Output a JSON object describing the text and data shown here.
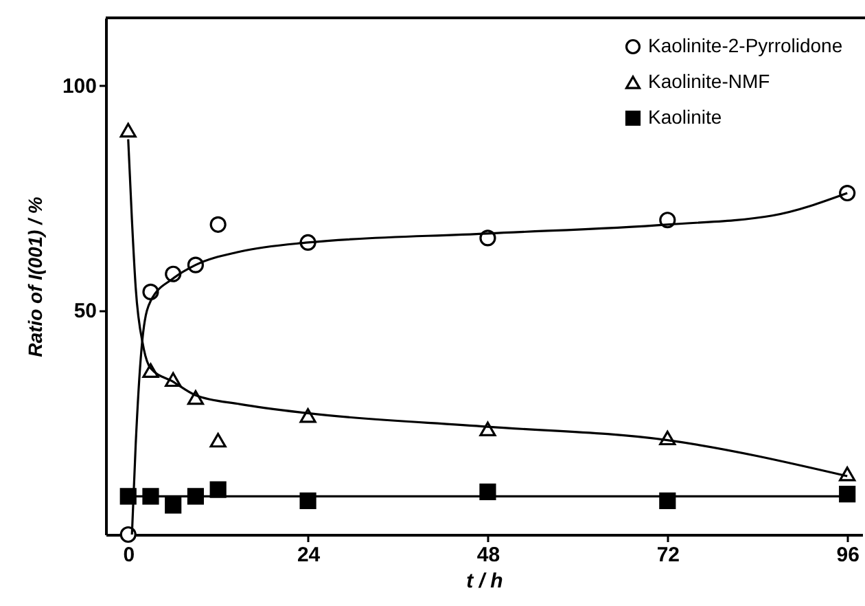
{
  "chart_data": {
    "type": "scatter",
    "xlabel": "t / h",
    "ylabel": "Ratio of I(001) / %",
    "xlim": [
      -3,
      98
    ],
    "xticks": [
      0,
      24,
      48,
      72,
      96
    ],
    "ylim": [
      0,
      115
    ],
    "yticks": [
      50,
      100
    ],
    "grid": false,
    "legend": "top right",
    "series": [
      {
        "name": "Kaolinite-2-Pyrrolidone",
        "color": "#000000",
        "marker": "circle",
        "x": [
          0,
          3,
          6,
          9,
          12,
          24,
          48,
          72,
          96
        ],
        "values": [
          0,
          54,
          58,
          60,
          69,
          65,
          66,
          70,
          76
        ]
      },
      {
        "name": "Kaolinite-NMF",
        "color": "#000000",
        "marker": "triangle",
        "x": [
          0,
          3,
          6,
          9,
          12,
          24,
          48,
          72,
          96
        ],
        "values": [
          90,
          36.5,
          34.5,
          30.5,
          21,
          26.5,
          23.5,
          21.5,
          13.5
        ]
      },
      {
        "name": "Kaolinite",
        "color": "#000000",
        "marker": "square",
        "x": [
          0,
          3,
          6,
          9,
          12,
          24,
          48,
          72,
          96
        ],
        "values": [
          8.5,
          8.5,
          6.5,
          8.5,
          10,
          7.5,
          9.5,
          7.5,
          9
        ]
      },
      {
        "type": "line",
        "color": "#000000",
        "marker": "none",
        "line_style": "solid",
        "x": [
          0.5,
          1,
          2,
          3,
          6,
          9,
          15,
          24,
          48,
          72,
          86,
          96
        ],
        "values": [
          0,
          20,
          45,
          52,
          57,
          60,
          63,
          65,
          67,
          69,
          71,
          76
        ]
      },
      {
        "type": "line",
        "color": "#000000",
        "marker": "none",
        "line_style": "solid",
        "x": [
          0,
          0.5,
          1,
          2,
          3,
          6,
          9,
          15,
          24,
          48,
          72,
          96
        ],
        "values": [
          88,
          70,
          55,
          42,
          37,
          34,
          31,
          29,
          27,
          24,
          21,
          13
        ]
      },
      {
        "type": "line",
        "color": "#000000",
        "marker": "none",
        "line_style": "solid",
        "x": [
          0,
          96
        ],
        "values": [
          8.5,
          8.5
        ]
      }
    ]
  }
}
